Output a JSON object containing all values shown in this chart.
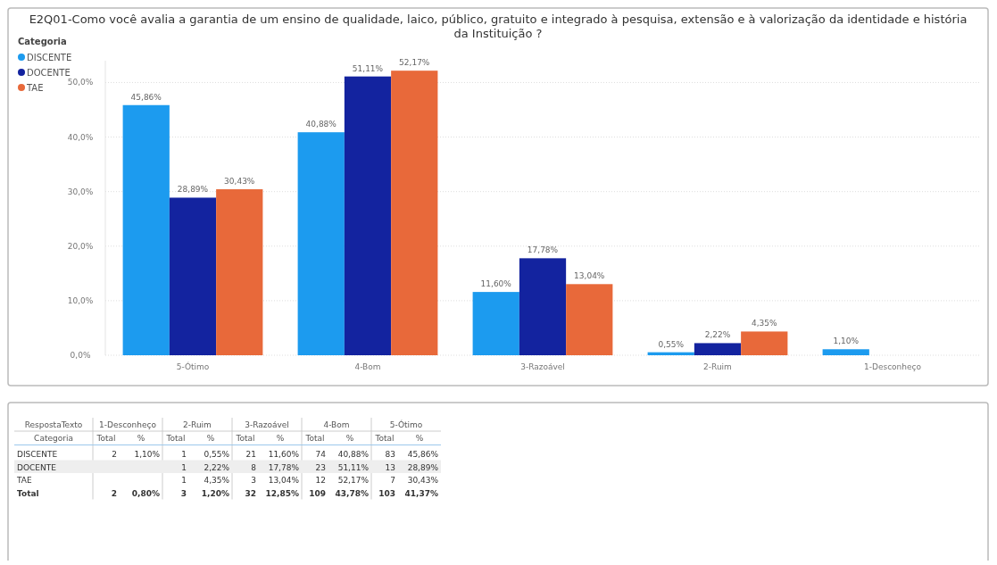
{
  "chart_data": [
    {
      "type": "bar",
      "title": "E2Q01-Como você avalia a garantia de um ensino de qualidade, laico, público, gratuito e integrado à pesquisa, extensão e à valorização da identidade e história da Instituição ?",
      "categories": [
        "5-Ótimo",
        "4-Bom",
        "3-Razoável",
        "2-Ruim",
        "1-Desconheço"
      ],
      "series": [
        {
          "name": "DISCENTE",
          "color": "#1c9bef",
          "values": [
            45.86,
            40.88,
            11.6,
            0.55,
            1.1
          ],
          "value_labels": [
            "45,86%",
            "40,88%",
            "11,60%",
            "0,55%",
            "1,10%"
          ]
        },
        {
          "name": "DOCENTE",
          "color": "#13239f",
          "values": [
            28.89,
            51.11,
            17.78,
            2.22,
            null
          ],
          "value_labels": [
            "28,89%",
            "51,11%",
            "17,78%",
            "2,22%",
            null
          ]
        },
        {
          "name": "TAE",
          "color": "#e8693a",
          "values": [
            30.43,
            52.17,
            13.04,
            4.35,
            null
          ],
          "value_labels": [
            "30,43%",
            "52,17%",
            "13,04%",
            "4,35%",
            null
          ]
        }
      ],
      "ylim": [
        0,
        54
      ],
      "yticks": [
        {
          "value": 0,
          "label": "0,0%"
        },
        {
          "value": 10,
          "label": "10,0%"
        },
        {
          "value": 20,
          "label": "20,0%"
        },
        {
          "value": 30,
          "label": "30,0%"
        },
        {
          "value": 40,
          "label": "40,0%"
        },
        {
          "value": 50,
          "label": "50,0%"
        }
      ],
      "grid": "y",
      "legend": "top left",
      "legend_title": "Categoria"
    },
    {
      "type": "other",
      "xlabel": "RespostaTexto",
      "ylabel": "Categoria",
      "categories": [
        "1-Desconheço",
        "2-Ruim",
        "3-Razoável",
        "4-Bom",
        "5-Ótimo"
      ],
      "annotations": [
        "Total",
        "%"
      ],
      "y_categories": [
        "DISCENTE",
        "DOCENTE",
        "TAE",
        "Total"
      ],
      "cell_labels": [
        [
          "2",
          "1,10%",
          "1",
          "0,55%",
          "21",
          "11,60%",
          "74",
          "40,88%",
          "83",
          "45,86%"
        ],
        [
          null,
          null,
          "1",
          "2,22%",
          "8",
          "17,78%",
          "23",
          "51,11%",
          "13",
          "28,89%"
        ],
        [
          null,
          null,
          "1",
          "4,35%",
          "3",
          "13,04%",
          "12",
          "52,17%",
          "7",
          "30,43%"
        ],
        [
          "2",
          "0,80%",
          "3",
          "1,20%",
          "32",
          "12,85%",
          "109",
          "43,78%",
          "103",
          "41,37%"
        ]
      ]
    }
  ]
}
